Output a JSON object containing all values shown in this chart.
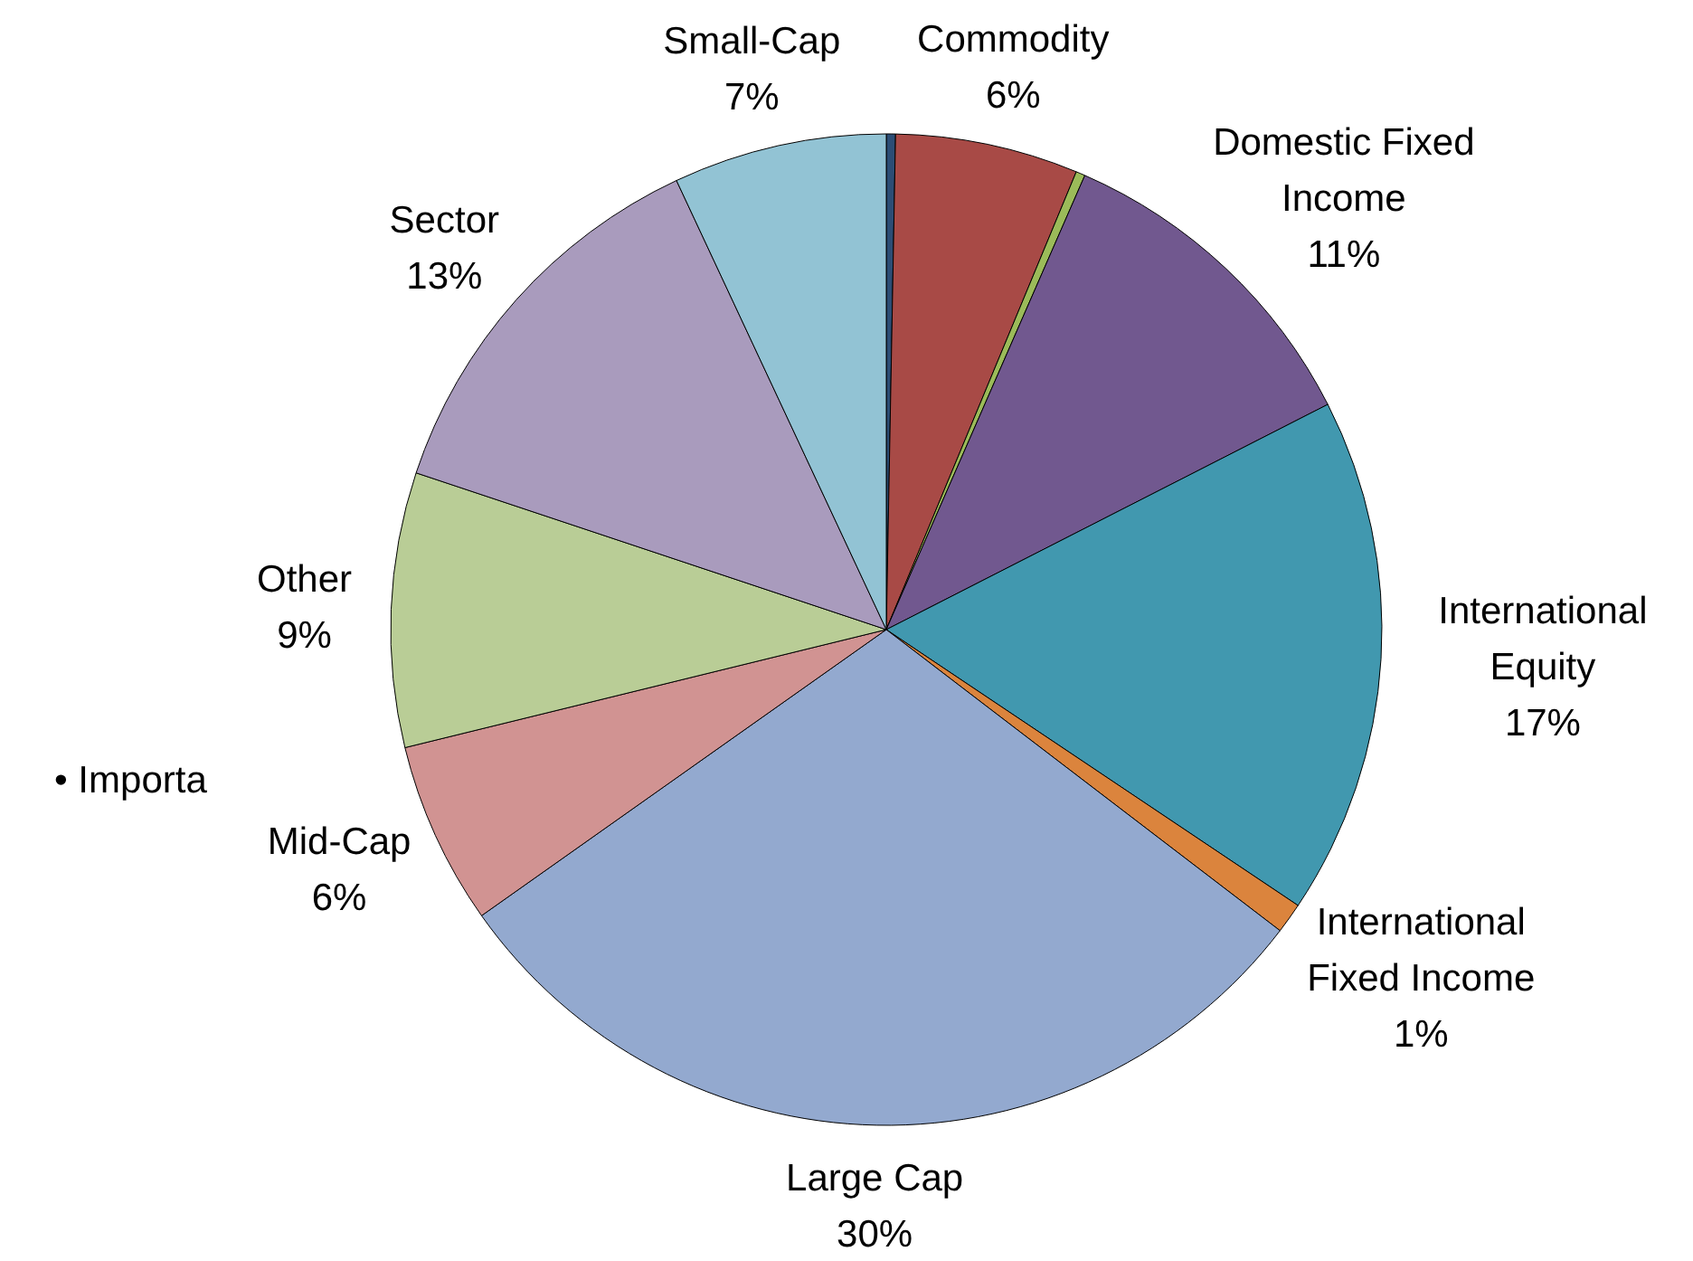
{
  "chart_data": {
    "type": "pie",
    "categories": [
      null,
      "Commodity",
      null,
      "Domestic Fixed Income",
      "International Equity",
      "International Fixed Income",
      "Large Cap",
      "Mid-Cap",
      "Other",
      "Sector",
      "Small-Cap"
    ],
    "values": [
      0.3,
      6,
      0.3,
      11,
      17,
      1,
      30,
      6,
      9,
      13,
      7
    ],
    "value_labels": [
      null,
      "6%",
      null,
      "11%",
      "17%",
      "1%",
      "30%",
      "6%",
      "9%",
      "13%",
      "7%"
    ],
    "colors": [
      "#2c4d75",
      "#a84a46",
      "#9bbb59",
      "#71588f",
      "#4198af",
      "#db843d",
      "#93a9cf",
      "#d19392",
      "#b9cd96",
      "#a99bbd",
      "#92c3d4"
    ],
    "annotations": [
      "• Importa"
    ]
  }
}
